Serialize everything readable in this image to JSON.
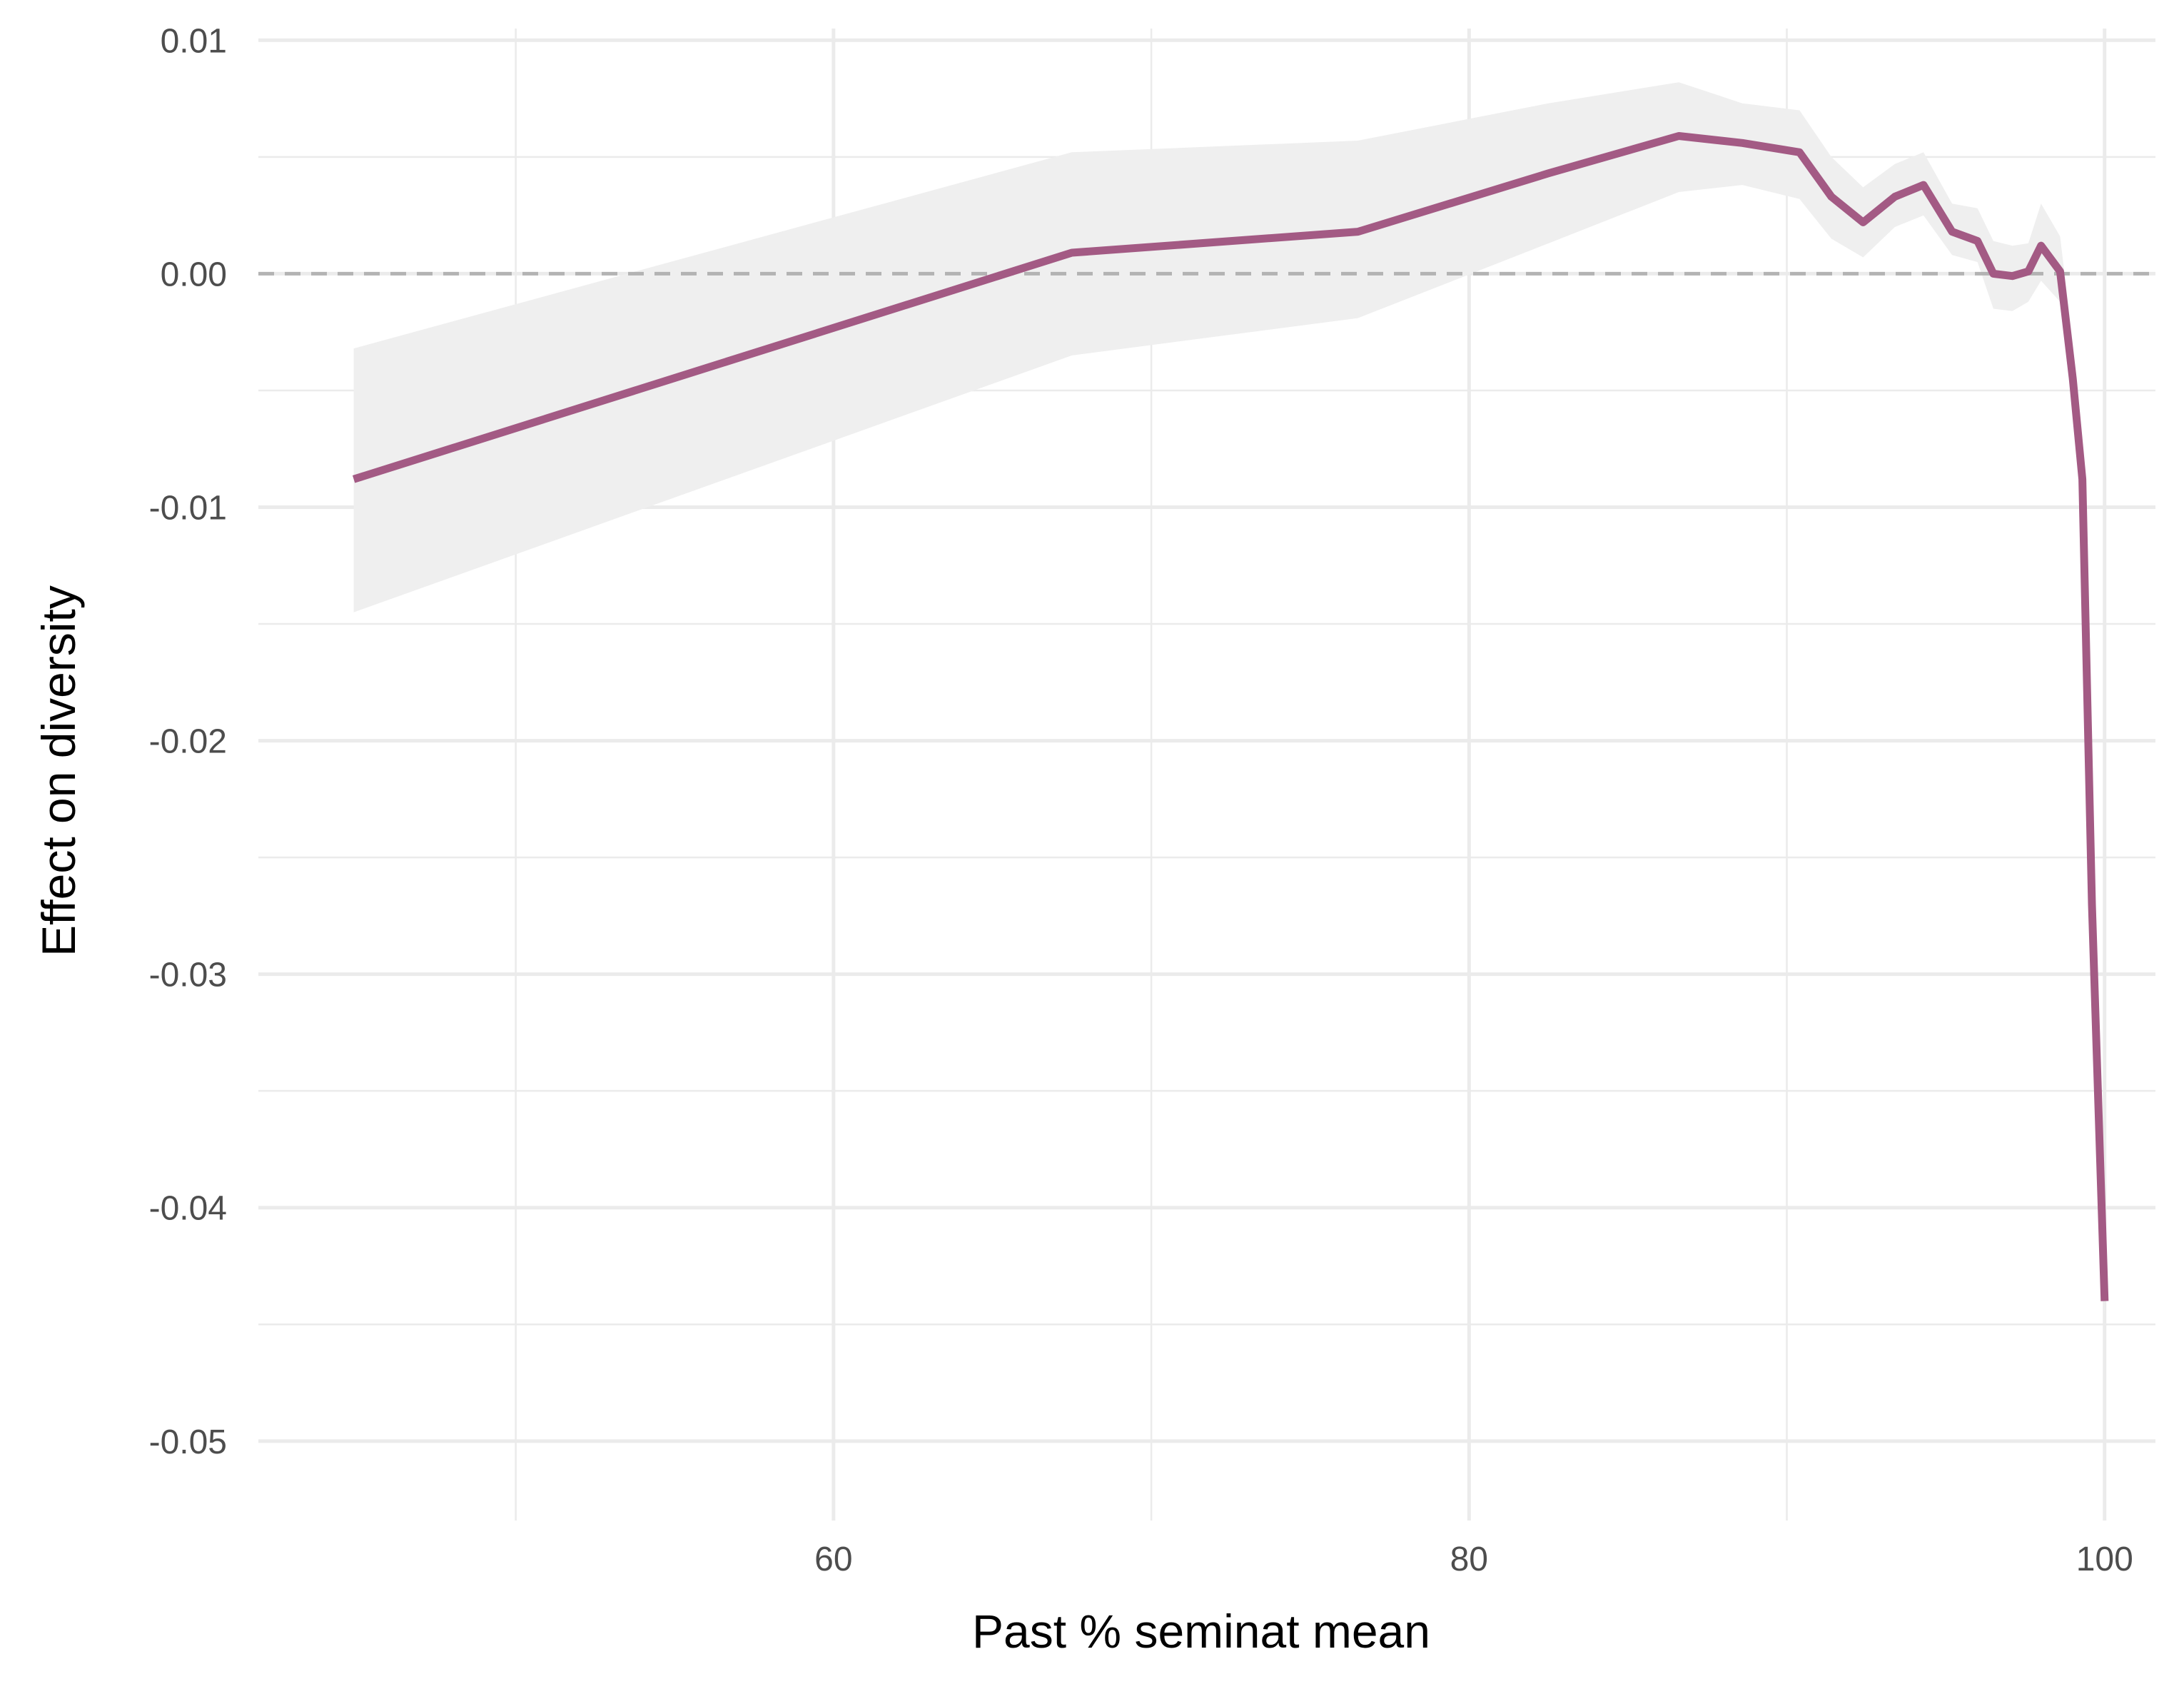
{
  "chart_data": {
    "type": "line",
    "title": "",
    "xlabel": "Past % seminat mean",
    "ylabel": "Effect on diversity",
    "xlim": [
      41.9,
      101.6
    ],
    "ylim": [
      -0.0534,
      0.0105
    ],
    "x_ticks": [
      60,
      80,
      100
    ],
    "x_tick_labels": [
      "60",
      "80",
      "100"
    ],
    "x_minor_ticks": [
      50,
      70,
      90
    ],
    "y_ticks": [
      0.01,
      0.0,
      -0.01,
      -0.02,
      -0.03,
      -0.04,
      -0.05
    ],
    "y_tick_labels": [
      "0.01",
      "0.00",
      "-0.01",
      "-0.02",
      "-0.03",
      "-0.04",
      "-0.05"
    ],
    "y_minor_ticks": [
      0.005,
      -0.005,
      -0.015,
      -0.025,
      -0.035,
      -0.045
    ],
    "grid": true,
    "reference_line": {
      "y": 0,
      "style": "dashed",
      "color": "#b3b3b3"
    },
    "colors": {
      "line": "#a35a84",
      "ribbon": "#efefef",
      "grid": "#ebebeb"
    },
    "series": [
      {
        "x": [
          44.9,
          67.5,
          76.5,
          82.5,
          86.6,
          88.6,
          90.4,
          91.4,
          92.4,
          93.4,
          94.3,
          95.2,
          96.0,
          96.5,
          97.1,
          97.6,
          98.0,
          98.6,
          99.0,
          99.3,
          99.6,
          100.0
        ],
        "y": [
          -0.0088,
          0.0009,
          0.0018,
          0.0043,
          0.0059,
          0.0056,
          0.0052,
          0.0033,
          0.0022,
          0.0033,
          0.0038,
          0.0018,
          0.0014,
          0.0,
          -0.0001,
          0.0001,
          0.0012,
          0.0001,
          -0.0045,
          -0.0088,
          -0.027,
          -0.044
        ],
        "lower": [
          -0.0145,
          -0.0035,
          -0.0019,
          0.0013,
          0.0035,
          0.0038,
          0.0032,
          0.0015,
          0.0007,
          0.002,
          0.0025,
          0.0008,
          0.0005,
          -0.0015,
          -0.0016,
          -0.0012,
          -0.0003,
          -0.0012,
          -0.006,
          -0.01,
          -0.029,
          -0.045
        ],
        "upper": [
          -0.0032,
          0.0052,
          0.0057,
          0.0073,
          0.0082,
          0.0073,
          0.007,
          0.005,
          0.0037,
          0.0047,
          0.0052,
          0.003,
          0.0028,
          0.0014,
          0.0012,
          0.0013,
          0.003,
          0.0016,
          -0.003,
          -0.0075,
          -0.025,
          -0.043
        ]
      }
    ]
  }
}
